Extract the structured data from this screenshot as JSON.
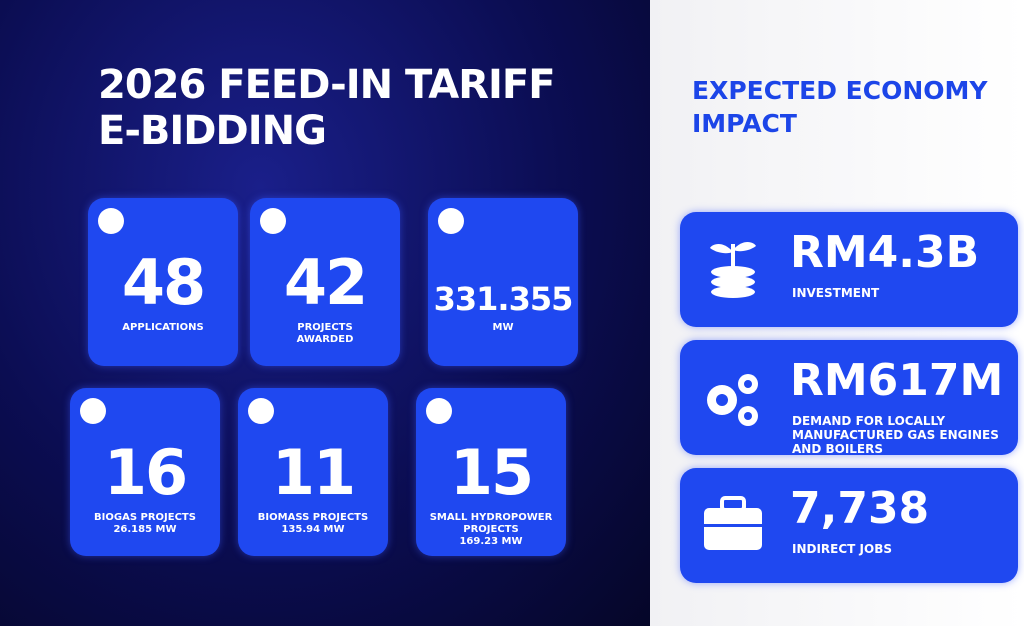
{
  "left": {
    "title": [
      "2026 FEED-IN TARIFF",
      "E-BIDDING"
    ],
    "cards": [
      {
        "value": "48",
        "label": [
          "APPLICATIONS"
        ]
      },
      {
        "value": "42",
        "label": [
          "PROJECTS",
          "AWARDED"
        ]
      },
      {
        "value": "331.355",
        "label": [
          "MW"
        ]
      },
      {
        "value": "16",
        "label": [
          "BIOGAS PROJECTS",
          "26.185 MW"
        ]
      },
      {
        "value": "11",
        "label": [
          "BIOMASS PROJECTS",
          "135.94 MW"
        ]
      },
      {
        "value": "15",
        "label": [
          "SMALL HYDROPOWER",
          "PROJECTS",
          "169.23 MW"
        ]
      }
    ]
  },
  "right": {
    "title": [
      "EXPECTED ECONOMY",
      "IMPACT"
    ],
    "cards": [
      {
        "value": "RM4.3B",
        "label": [
          "INVESTMENT"
        ]
      },
      {
        "value": "RM617M",
        "label": [
          "DEMAND FOR LOCALLY",
          "MANUFACTURED GAS ENGINES",
          "AND BOILERS"
        ]
      },
      {
        "value": "7,738",
        "label": [
          "INDIRECT JOBS"
        ]
      }
    ]
  }
}
